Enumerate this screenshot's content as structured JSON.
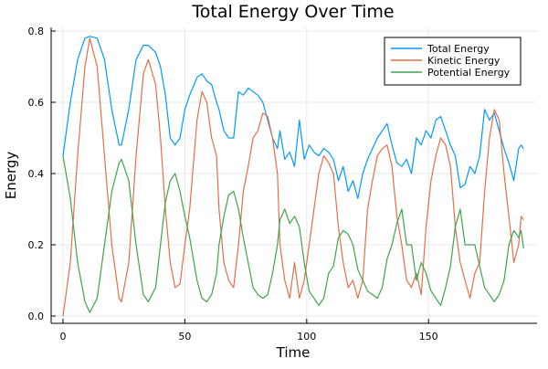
{
  "chart_data": {
    "type": "line",
    "title": "Total Energy Over Time",
    "xlabel": "Time",
    "ylabel": "Energy",
    "xlim": [
      -5,
      194
    ],
    "ylim": [
      -0.02,
      0.81
    ],
    "xticks": [
      0,
      50,
      100,
      150
    ],
    "xtick_labels": [
      "0",
      "50",
      "100",
      "150"
    ],
    "yticks": [
      0.0,
      0.2,
      0.4,
      0.6,
      0.8
    ],
    "ytick_labels": [
      "0.0",
      "0.2",
      "0.4",
      "0.6",
      "0.8"
    ],
    "grid": true,
    "legend_position": "top-right",
    "x": [
      0,
      3,
      6,
      9,
      11,
      14,
      17,
      20,
      23,
      24,
      27,
      30,
      33,
      35,
      38,
      40,
      42,
      44,
      46,
      48,
      50,
      52,
      55,
      57,
      59,
      61,
      63,
      64,
      66,
      68,
      70,
      72,
      74,
      76,
      78,
      80,
      82,
      84,
      86,
      88,
      89,
      91,
      93,
      95,
      97,
      99,
      101,
      103,
      105,
      107,
      109,
      111,
      113,
      115,
      117,
      119,
      121,
      123,
      125,
      127,
      129,
      131,
      133,
      135,
      137,
      139,
      141,
      143,
      145,
      147,
      149,
      151,
      153,
      155,
      157,
      159,
      161,
      163,
      165,
      167,
      169,
      171,
      173,
      175,
      177,
      179,
      181,
      183,
      185,
      187,
      188,
      189
    ],
    "series": [
      {
        "name": "Total Energy",
        "color": "#009af9",
        "values": [
          0.45,
          0.6,
          0.72,
          0.78,
          0.785,
          0.78,
          0.72,
          0.58,
          0.48,
          0.48,
          0.58,
          0.72,
          0.76,
          0.76,
          0.74,
          0.7,
          0.62,
          0.5,
          0.48,
          0.5,
          0.58,
          0.62,
          0.67,
          0.68,
          0.66,
          0.65,
          0.6,
          0.58,
          0.52,
          0.5,
          0.5,
          0.63,
          0.62,
          0.64,
          0.63,
          0.62,
          0.6,
          0.55,
          0.5,
          0.47,
          0.52,
          0.44,
          0.46,
          0.42,
          0.55,
          0.44,
          0.48,
          0.46,
          0.45,
          0.47,
          0.46,
          0.44,
          0.38,
          0.42,
          0.35,
          0.38,
          0.33,
          0.4,
          0.44,
          0.47,
          0.5,
          0.52,
          0.54,
          0.48,
          0.43,
          0.42,
          0.44,
          0.4,
          0.5,
          0.48,
          0.52,
          0.5,
          0.55,
          0.56,
          0.52,
          0.48,
          0.45,
          0.36,
          0.37,
          0.42,
          0.4,
          0.45,
          0.58,
          0.55,
          0.57,
          0.52,
          0.47,
          0.43,
          0.38,
          0.47,
          0.48,
          0.47
        ]
      },
      {
        "name": "Kinetic Energy",
        "color": "#e26f46",
        "values": [
          0,
          0.15,
          0.45,
          0.7,
          0.78,
          0.7,
          0.45,
          0.2,
          0.05,
          0.04,
          0.15,
          0.45,
          0.68,
          0.72,
          0.65,
          0.5,
          0.3,
          0.15,
          0.08,
          0.09,
          0.2,
          0.3,
          0.55,
          0.63,
          0.6,
          0.5,
          0.45,
          0.3,
          0.15,
          0.1,
          0.08,
          0.2,
          0.35,
          0.42,
          0.5,
          0.52,
          0.57,
          0.56,
          0.5,
          0.4,
          0.2,
          0.1,
          0.05,
          0.15,
          0.05,
          0.1,
          0.2,
          0.3,
          0.4,
          0.45,
          0.43,
          0.4,
          0.25,
          0.15,
          0.08,
          0.1,
          0.05,
          0.1,
          0.3,
          0.38,
          0.45,
          0.47,
          0.48,
          0.42,
          0.28,
          0.2,
          0.1,
          0.08,
          0.12,
          0.06,
          0.25,
          0.38,
          0.45,
          0.5,
          0.48,
          0.42,
          0.25,
          0.15,
          0.1,
          0.05,
          0.12,
          0.15,
          0.35,
          0.5,
          0.58,
          0.55,
          0.4,
          0.28,
          0.15,
          0.2,
          0.28,
          0.27
        ]
      },
      {
        "name": "Potential Energy",
        "color": "#3da44d",
        "values": [
          0.45,
          0.33,
          0.15,
          0.04,
          0.01,
          0.05,
          0.2,
          0.35,
          0.43,
          0.44,
          0.38,
          0.2,
          0.06,
          0.04,
          0.08,
          0.2,
          0.32,
          0.38,
          0.4,
          0.35,
          0.28,
          0.22,
          0.1,
          0.05,
          0.04,
          0.06,
          0.12,
          0.2,
          0.28,
          0.34,
          0.35,
          0.3,
          0.22,
          0.15,
          0.08,
          0.06,
          0.05,
          0.06,
          0.12,
          0.2,
          0.27,
          0.3,
          0.26,
          0.28,
          0.25,
          0.15,
          0.07,
          0.05,
          0.03,
          0.05,
          0.12,
          0.14,
          0.22,
          0.24,
          0.23,
          0.2,
          0.13,
          0.1,
          0.07,
          0.06,
          0.05,
          0.08,
          0.16,
          0.2,
          0.26,
          0.3,
          0.2,
          0.2,
          0.1,
          0.15,
          0.12,
          0.07,
          0.05,
          0.03,
          0.08,
          0.14,
          0.25,
          0.3,
          0.2,
          0.2,
          0.2,
          0.14,
          0.08,
          0.06,
          0.04,
          0.06,
          0.1,
          0.2,
          0.24,
          0.22,
          0.24,
          0.19
        ]
      }
    ]
  }
}
